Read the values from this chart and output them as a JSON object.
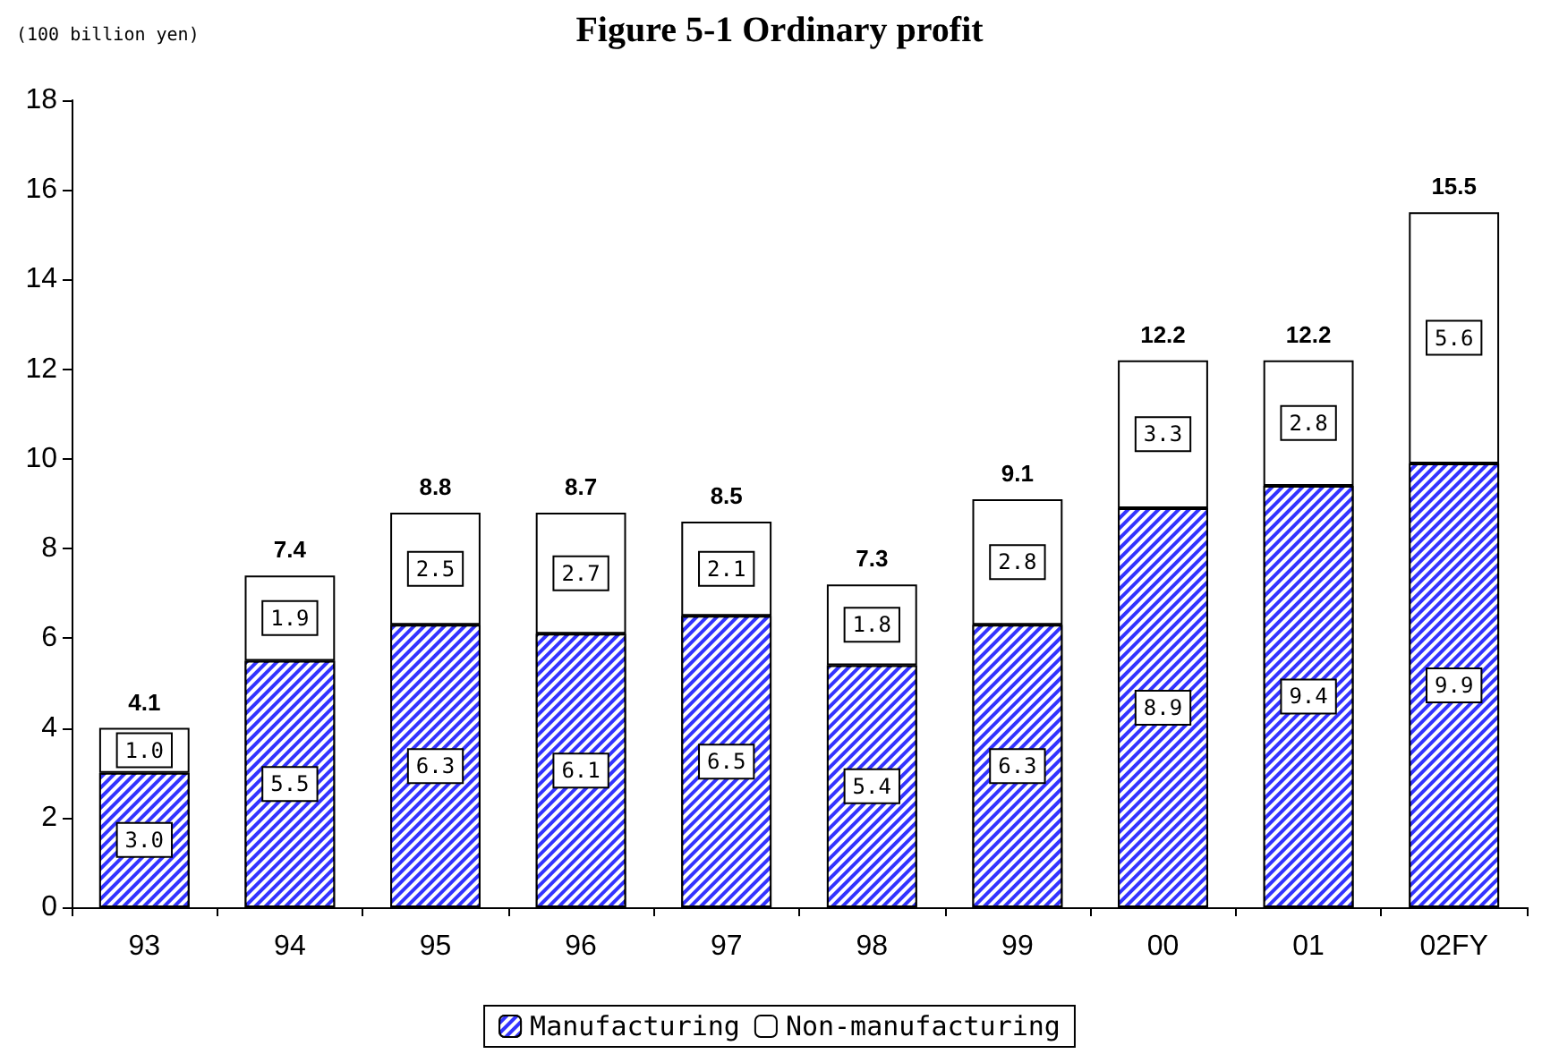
{
  "chart_data": {
    "type": "bar",
    "title": "Figure 5-1 Ordinary profit",
    "ylabel": "(100 billion yen)",
    "categories": [
      "93",
      "94",
      "95",
      "96",
      "97",
      "98",
      "99",
      "00",
      "01",
      "02FY"
    ],
    "stacked": true,
    "series": [
      {
        "name": "Manufacturing",
        "color": "#3333ff",
        "values": [
          3.0,
          5.5,
          6.3,
          6.1,
          6.5,
          5.4,
          6.3,
          8.9,
          9.4,
          9.9
        ],
        "value_labels": [
          "3.0",
          "5.5",
          "6.3",
          "6.1",
          "6.5",
          "5.4",
          "6.3",
          "8.9",
          "9.4",
          "9.9"
        ]
      },
      {
        "name": "Non-manufacturing",
        "color": "#ffffff",
        "values": [
          1.0,
          1.9,
          2.5,
          2.7,
          2.1,
          1.8,
          2.8,
          3.3,
          2.8,
          5.6
        ],
        "value_labels": [
          "1.0",
          "1.9",
          "2.5",
          "2.7",
          "2.1",
          "1.8",
          "2.8",
          "3.3",
          "2.8",
          "5.6"
        ]
      }
    ],
    "totals": [
      "4.1",
      "7.4",
      "8.8",
      "8.7",
      "8.5",
      "7.3",
      "9.1",
      "12.2",
      "12.2",
      "15.5"
    ],
    "ylim": [
      0,
      18
    ],
    "yticks": [
      0,
      2,
      4,
      6,
      8,
      10,
      12,
      14,
      16,
      18
    ],
    "grid": false,
    "legend": "bottom"
  }
}
